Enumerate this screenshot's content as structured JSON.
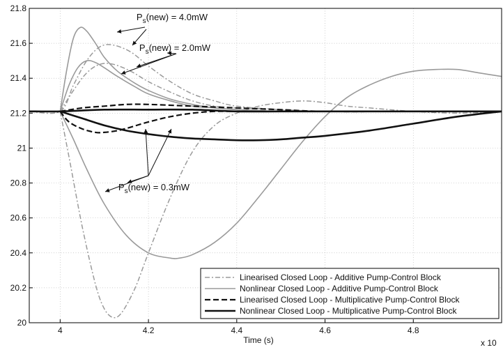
{
  "chart_data": {
    "type": "line",
    "title": "",
    "xlabel": "Time (s)",
    "ylabel": "",
    "x_multiplier_label": "x 10",
    "xlim": [
      3.93,
      5.0
    ],
    "ylim": [
      20.0,
      21.8
    ],
    "xticks": [
      "4",
      "4.2",
      "4.4",
      "4.6",
      "4.8"
    ],
    "yticks": [
      "20",
      "20.2",
      "20.4",
      "20.6",
      "20.8",
      "21",
      "21.2",
      "21.4",
      "21.6",
      "21.8"
    ],
    "grid": true,
    "legend_position": "bottom-right",
    "annotations": [
      {
        "prefix": "P",
        "sub": "s",
        "text": "(new) = 4.0mW"
      },
      {
        "prefix": "P",
        "sub": "s",
        "text": "(new) = 2.0mW"
      },
      {
        "prefix": "P",
        "sub": "s",
        "text": "(new) = 0.3mW"
      }
    ],
    "series": [
      {
        "name": "Linearised Closed Loop - Additive Pump-Control Block",
        "style": "dashdot-gray",
        "curves": [
          {
            "x": [
              3.93,
              4.0,
              4.03,
              4.06,
              4.09,
              4.12,
              4.16,
              4.2,
              4.25,
              4.3,
              4.35,
              4.4,
              4.5,
              4.6,
              4.7,
              4.8,
              5.0
            ],
            "y": [
              21.21,
              21.21,
              21.36,
              21.5,
              21.58,
              21.59,
              21.55,
              21.47,
              21.38,
              21.31,
              21.27,
              21.24,
              21.22,
              21.21,
              21.21,
              21.21,
              21.21
            ]
          },
          {
            "x": [
              4.0,
              4.03,
              4.06,
              4.09,
              4.12,
              4.16,
              4.2,
              4.25,
              4.3,
              4.35,
              4.4,
              4.5,
              4.6,
              4.8,
              5.0
            ],
            "y": [
              21.21,
              21.33,
              21.43,
              21.48,
              21.48,
              21.44,
              21.38,
              21.32,
              21.27,
              21.24,
              21.23,
              21.22,
              21.21,
              21.21,
              21.21
            ]
          },
          {
            "x": [
              4.0,
              4.02,
              4.05,
              4.08,
              4.1,
              4.12,
              4.14,
              4.17,
              4.2,
              4.25,
              4.3,
              4.35,
              4.4,
              4.45,
              4.5,
              4.55,
              4.6,
              4.65,
              4.7,
              4.8,
              4.9,
              5.0
            ],
            "y": [
              21.21,
              20.95,
              20.55,
              20.22,
              20.08,
              20.03,
              20.06,
              20.2,
              20.4,
              20.72,
              20.98,
              21.13,
              21.2,
              21.24,
              21.26,
              21.27,
              21.26,
              21.24,
              21.23,
              21.21,
              21.2,
              21.21
            ]
          }
        ]
      },
      {
        "name": "Nonlinear Closed Loop - Additive Pump-Control Block",
        "style": "solid-gray",
        "curves": [
          {
            "x": [
              4.0,
              4.015,
              4.03,
              4.045,
              4.06,
              4.08,
              4.1,
              4.13,
              4.17,
              4.2,
              4.25,
              4.3,
              4.35,
              4.4,
              4.5,
              4.6,
              4.8,
              5.0
            ],
            "y": [
              21.21,
              21.45,
              21.63,
              21.69,
              21.67,
              21.6,
              21.52,
              21.44,
              21.37,
              21.33,
              21.28,
              21.25,
              21.23,
              21.22,
              21.21,
              21.21,
              21.21,
              21.21
            ]
          },
          {
            "x": [
              4.0,
              4.02,
              4.04,
              4.06,
              4.08,
              4.1,
              4.13,
              4.17,
              4.2,
              4.25,
              4.3,
              4.35,
              4.4,
              4.5,
              4.6,
              4.8,
              5.0
            ],
            "y": [
              21.21,
              21.36,
              21.46,
              21.5,
              21.49,
              21.46,
              21.41,
              21.35,
              21.31,
              21.27,
              21.24,
              21.23,
              21.22,
              21.21,
              21.21,
              21.21,
              21.21
            ]
          },
          {
            "x": [
              4.0,
              4.03,
              4.06,
              4.1,
              4.15,
              4.2,
              4.25,
              4.27,
              4.3,
              4.35,
              4.4,
              4.45,
              4.5,
              4.55,
              4.6,
              4.65,
              4.7,
              4.75,
              4.8,
              4.85,
              4.9,
              4.95,
              5.0
            ],
            "y": [
              21.21,
              21.05,
              20.88,
              20.68,
              20.5,
              20.4,
              20.37,
              20.37,
              20.39,
              20.46,
              20.57,
              20.72,
              20.88,
              21.04,
              21.18,
              21.29,
              21.36,
              21.41,
              21.44,
              21.45,
              21.45,
              21.43,
              21.41
            ]
          }
        ]
      },
      {
        "name": "Linearised Closed Loop - Multiplicative Pump-Control Block",
        "style": "dashed-black",
        "curves": [
          {
            "x": [
              4.0,
              4.05,
              4.1,
              4.15,
              4.2,
              4.3,
              4.4,
              4.5,
              4.6,
              4.8,
              5.0
            ],
            "y": [
              21.21,
              21.23,
              21.24,
              21.25,
              21.25,
              21.24,
              21.23,
              21.22,
              21.21,
              21.21,
              21.21
            ]
          },
          {
            "x": [
              4.0,
              4.02,
              4.05,
              4.08,
              4.1,
              4.13,
              4.16,
              4.2,
              4.25,
              4.3,
              4.35,
              4.4,
              4.5,
              4.6,
              4.8,
              5.0
            ],
            "y": [
              21.21,
              21.15,
              21.11,
              21.09,
              21.09,
              21.1,
              21.12,
              21.15,
              21.18,
              21.2,
              21.21,
              21.21,
              21.21,
              21.21,
              21.21,
              21.21
            ]
          }
        ]
      },
      {
        "name": "Nonlinear Closed Loop - Multiplicative Pump-Control Block",
        "style": "solid-black",
        "curves": [
          {
            "x": [
              3.93,
              4.0,
              4.1,
              4.2,
              4.3,
              4.4,
              4.5,
              4.6,
              4.7,
              4.8,
              5.0
            ],
            "y": [
              21.21,
              21.21,
              21.22,
              21.22,
              21.22,
              21.21,
              21.21,
              21.21,
              21.21,
              21.21,
              21.21
            ]
          },
          {
            "x": [
              4.0,
              4.05,
              4.1,
              4.15,
              4.2,
              4.25,
              4.3,
              4.35,
              4.4,
              4.45,
              4.5,
              4.55,
              4.6,
              4.7,
              4.8,
              4.9,
              5.0
            ],
            "y": [
              21.21,
              21.17,
              21.13,
              21.1,
              21.08,
              21.065,
              21.055,
              21.05,
              21.045,
              21.045,
              21.05,
              21.06,
              21.07,
              21.1,
              21.14,
              21.18,
              21.21
            ]
          }
        ]
      }
    ]
  }
}
